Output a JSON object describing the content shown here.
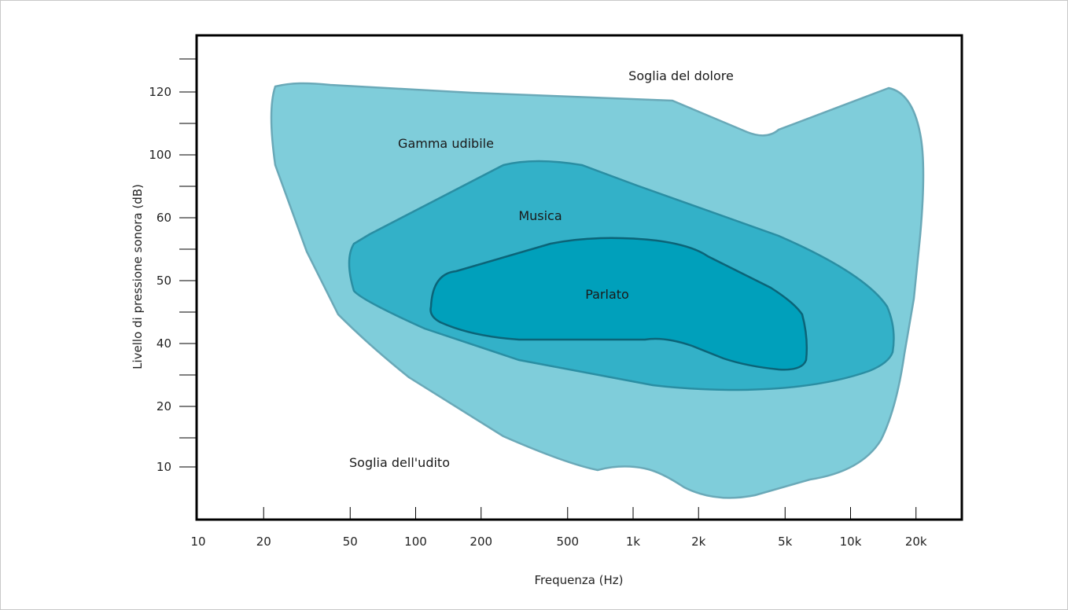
{
  "chart_data": {
    "type": "area",
    "title": "",
    "xlabel": "Frequenza (Hz)",
    "ylabel": "Livello di pressione sonora (dB)",
    "x_ticks": [
      "10",
      "20",
      "50",
      "100",
      "200",
      "500",
      "1k",
      "2k",
      "5k",
      "10k",
      "20k"
    ],
    "y_ticks": [
      "10",
      "20",
      "40",
      "50",
      "60",
      "100",
      "120"
    ],
    "annotations": {
      "pain_threshold": "Soglia del dolore",
      "hearing_threshold": "Soglia dell'udito"
    },
    "series": [
      {
        "name": "Gamma udibile",
        "color": "#7fcdda",
        "stroke": "#6aa9b8"
      },
      {
        "name": "Musica",
        "color": "#33b1c8",
        "stroke": "#2a8ea3"
      },
      {
        "name": "Parlato",
        "color": "#00a0bb",
        "stroke": "#0b6478"
      }
    ]
  }
}
